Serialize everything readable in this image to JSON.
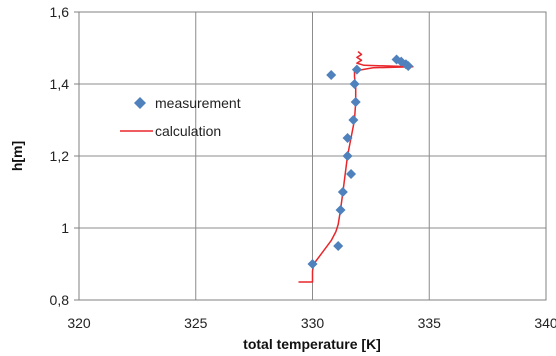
{
  "chart_data": {
    "type": "scatter",
    "xlabel": "total temperature [K]",
    "ylabel": "h[m]",
    "xlim": [
      320,
      340
    ],
    "ylim": [
      0.8,
      1.6
    ],
    "x_ticks": [
      "320",
      "325",
      "330",
      "335",
      "340"
    ],
    "y_ticks": [
      "0,8",
      "1",
      "1,2",
      "1,4",
      "1,6"
    ],
    "grid": "vertical-and-horizontal",
    "legend_position": "center-left",
    "series": [
      {
        "name": "measurement",
        "kind": "markers",
        "marker": "diamond",
        "color": "#4f81bd",
        "points": [
          {
            "x": 330.0,
            "y": 0.9
          },
          {
            "x": 331.1,
            "y": 0.95
          },
          {
            "x": 331.2,
            "y": 1.05
          },
          {
            "x": 331.3,
            "y": 1.1
          },
          {
            "x": 331.65,
            "y": 1.15
          },
          {
            "x": 331.5,
            "y": 1.2
          },
          {
            "x": 331.5,
            "y": 1.25
          },
          {
            "x": 331.75,
            "y": 1.3
          },
          {
            "x": 331.85,
            "y": 1.35
          },
          {
            "x": 331.8,
            "y": 1.4
          },
          {
            "x": 330.8,
            "y": 1.425
          },
          {
            "x": 331.9,
            "y": 1.44
          },
          {
            "x": 334.0,
            "y": 1.455
          },
          {
            "x": 334.1,
            "y": 1.45
          },
          {
            "x": 333.6,
            "y": 1.468
          },
          {
            "x": 333.8,
            "y": 1.462
          }
        ]
      },
      {
        "name": "calculation",
        "kind": "line",
        "color": "#e8262b",
        "points": [
          {
            "x": 329.4,
            "y": 0.85
          },
          {
            "x": 330.0,
            "y": 0.85
          },
          {
            "x": 330.0,
            "y": 0.88
          },
          {
            "x": 330.05,
            "y": 0.9
          },
          {
            "x": 330.4,
            "y": 0.93
          },
          {
            "x": 330.8,
            "y": 0.965
          },
          {
            "x": 331.0,
            "y": 0.99
          },
          {
            "x": 331.1,
            "y": 1.01
          },
          {
            "x": 331.2,
            "y": 1.05
          },
          {
            "x": 331.3,
            "y": 1.1
          },
          {
            "x": 331.5,
            "y": 1.2
          },
          {
            "x": 331.8,
            "y": 1.3
          },
          {
            "x": 331.85,
            "y": 1.35
          },
          {
            "x": 331.85,
            "y": 1.39
          },
          {
            "x": 331.8,
            "y": 1.42
          },
          {
            "x": 331.8,
            "y": 1.436
          },
          {
            "x": 332.6,
            "y": 1.445
          },
          {
            "x": 334.3,
            "y": 1.448
          },
          {
            "x": 332.2,
            "y": 1.452
          },
          {
            "x": 331.9,
            "y": 1.458
          },
          {
            "x": 332.1,
            "y": 1.466
          },
          {
            "x": 331.9,
            "y": 1.474
          },
          {
            "x": 332.1,
            "y": 1.482
          },
          {
            "x": 331.95,
            "y": 1.49
          }
        ]
      }
    ]
  }
}
